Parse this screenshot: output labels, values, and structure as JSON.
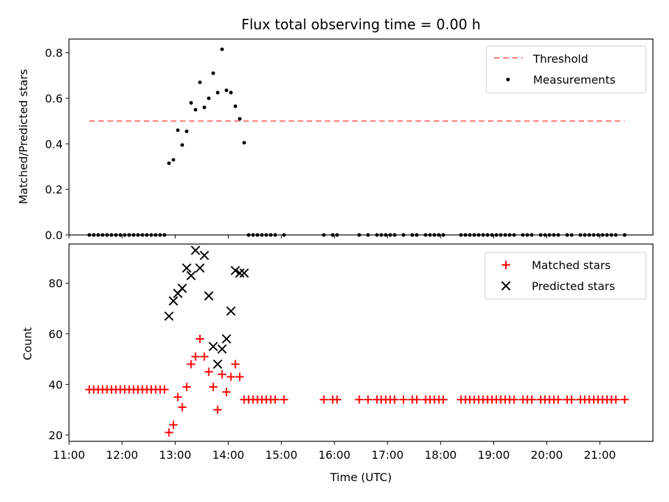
{
  "chart_data": [
    {
      "type": "scatter",
      "title": "Flux total observing time = 0.00 h",
      "xlabel": "",
      "ylabel": "Matched/Predicted stars",
      "xlim": [
        "11:00",
        "22:00"
      ],
      "ylim": [
        0,
        0.86
      ],
      "yticks": [
        0.0,
        0.2,
        0.4,
        0.6,
        0.8
      ],
      "ytick_labels": [
        "0.0",
        "0.2",
        "0.4",
        "0.6",
        "0.8"
      ],
      "legend_position": "top-right",
      "series": [
        {
          "name": "Threshold",
          "kind": "dashed-line",
          "color": "#ff7f7f",
          "x": [
            "11:23",
            "21:28"
          ],
          "y": [
            0.5,
            0.5
          ]
        },
        {
          "name": "Measurements",
          "kind": "points",
          "color": "#000000",
          "points": [
            [
              "11:23",
              0.0
            ],
            [
              "11:28",
              0.0
            ],
            [
              "11:33",
              0.0
            ],
            [
              "11:38",
              0.0
            ],
            [
              "11:43",
              0.0
            ],
            [
              "11:48",
              0.0
            ],
            [
              "11:53",
              0.0
            ],
            [
              "11:58",
              0.0
            ],
            [
              "12:03",
              0.0
            ],
            [
              "12:08",
              0.0
            ],
            [
              "12:13",
              0.0
            ],
            [
              "12:18",
              0.0
            ],
            [
              "12:23",
              0.0
            ],
            [
              "12:28",
              0.0
            ],
            [
              "12:33",
              0.0
            ],
            [
              "12:38",
              0.0
            ],
            [
              "12:43",
              0.0
            ],
            [
              "12:48",
              0.0
            ],
            [
              "12:53",
              0.315
            ],
            [
              "12:58",
              0.33
            ],
            [
              "13:03",
              0.46
            ],
            [
              "13:08",
              0.395
            ],
            [
              "13:13",
              0.455
            ],
            [
              "13:18",
              0.58
            ],
            [
              "13:23",
              0.55
            ],
            [
              "13:28",
              0.67
            ],
            [
              "13:33",
              0.56
            ],
            [
              "13:38",
              0.6
            ],
            [
              "13:43",
              0.71
            ],
            [
              "13:48",
              0.625
            ],
            [
              "13:53",
              0.815
            ],
            [
              "13:58",
              0.635
            ],
            [
              "14:03",
              0.625
            ],
            [
              "14:08",
              0.565
            ],
            [
              "14:13",
              0.51
            ],
            [
              "14:18",
              0.405
            ],
            [
              "14:23",
              0.0
            ],
            [
              "14:28",
              0.0
            ],
            [
              "14:33",
              0.0
            ],
            [
              "14:38",
              0.0
            ],
            [
              "14:43",
              0.0
            ],
            [
              "14:48",
              0.0
            ],
            [
              "14:53",
              0.0
            ],
            [
              "15:03",
              0.0
            ],
            [
              "15:48",
              0.0
            ],
            [
              "15:58",
              0.0
            ],
            [
              "16:03",
              0.0
            ],
            [
              "16:28",
              0.0
            ],
            [
              "16:38",
              0.0
            ],
            [
              "16:48",
              0.0
            ],
            [
              "16:53",
              0.0
            ],
            [
              "16:58",
              0.0
            ],
            [
              "17:03",
              0.0
            ],
            [
              "17:08",
              0.0
            ],
            [
              "17:18",
              0.0
            ],
            [
              "17:28",
              0.0
            ],
            [
              "17:33",
              0.0
            ],
            [
              "17:43",
              0.0
            ],
            [
              "17:48",
              0.0
            ],
            [
              "17:53",
              0.0
            ],
            [
              "17:58",
              0.0
            ],
            [
              "18:03",
              0.0
            ],
            [
              "18:23",
              0.0
            ],
            [
              "18:28",
              0.0
            ],
            [
              "18:33",
              0.0
            ],
            [
              "18:38",
              0.0
            ],
            [
              "18:43",
              0.0
            ],
            [
              "18:48",
              0.0
            ],
            [
              "18:53",
              0.0
            ],
            [
              "18:58",
              0.0
            ],
            [
              "19:03",
              0.0
            ],
            [
              "19:08",
              0.0
            ],
            [
              "19:13",
              0.0
            ],
            [
              "19:18",
              0.0
            ],
            [
              "19:23",
              0.0
            ],
            [
              "19:33",
              0.0
            ],
            [
              "19:38",
              0.0
            ],
            [
              "19:43",
              0.0
            ],
            [
              "19:53",
              0.0
            ],
            [
              "19:58",
              0.0
            ],
            [
              "20:03",
              0.0
            ],
            [
              "20:08",
              0.0
            ],
            [
              "20:13",
              0.0
            ],
            [
              "20:23",
              0.0
            ],
            [
              "20:28",
              0.0
            ],
            [
              "20:38",
              0.0
            ],
            [
              "20:43",
              0.0
            ],
            [
              "20:48",
              0.0
            ],
            [
              "20:53",
              0.0
            ],
            [
              "20:58",
              0.0
            ],
            [
              "21:03",
              0.0
            ],
            [
              "21:08",
              0.0
            ],
            [
              "21:13",
              0.0
            ],
            [
              "21:18",
              0.0
            ],
            [
              "21:28",
              0.0
            ]
          ]
        }
      ]
    },
    {
      "type": "scatter",
      "title": "",
      "xlabel": "Time (UTC)",
      "ylabel": "Count",
      "xlim": [
        "11:00",
        "22:00"
      ],
      "ylim": [
        17.5,
        95.5
      ],
      "xticks": [
        "11:00",
        "12:00",
        "13:00",
        "14:00",
        "15:00",
        "16:00",
        "17:00",
        "18:00",
        "19:00",
        "20:00",
        "21:00"
      ],
      "yticks": [
        20,
        40,
        60,
        80
      ],
      "ytick_labels": [
        "20",
        "40",
        "60",
        "80"
      ],
      "legend_position": "top-right",
      "series": [
        {
          "name": "Matched stars",
          "kind": "plus",
          "color": "#ff0000",
          "points": [
            [
              "11:23",
              38
            ],
            [
              "11:28",
              38
            ],
            [
              "11:33",
              38
            ],
            [
              "11:38",
              38
            ],
            [
              "11:43",
              38
            ],
            [
              "11:48",
              38
            ],
            [
              "11:53",
              38
            ],
            [
              "11:58",
              38
            ],
            [
              "12:03",
              38
            ],
            [
              "12:08",
              38
            ],
            [
              "12:13",
              38
            ],
            [
              "12:18",
              38
            ],
            [
              "12:23",
              38
            ],
            [
              "12:28",
              38
            ],
            [
              "12:33",
              38
            ],
            [
              "12:38",
              38
            ],
            [
              "12:43",
              38
            ],
            [
              "12:48",
              38
            ],
            [
              "12:53",
              21
            ],
            [
              "12:58",
              24
            ],
            [
              "13:03",
              35
            ],
            [
              "13:08",
              31
            ],
            [
              "13:13",
              39
            ],
            [
              "13:18",
              48
            ],
            [
              "13:23",
              51
            ],
            [
              "13:28",
              58
            ],
            [
              "13:33",
              51
            ],
            [
              "13:38",
              45
            ],
            [
              "13:43",
              39
            ],
            [
              "13:48",
              30
            ],
            [
              "13:53",
              44
            ],
            [
              "13:58",
              37
            ],
            [
              "14:03",
              43
            ],
            [
              "14:08",
              48
            ],
            [
              "14:13",
              43
            ],
            [
              "14:18",
              34
            ],
            [
              "14:23",
              34
            ],
            [
              "14:28",
              34
            ],
            [
              "14:33",
              34
            ],
            [
              "14:38",
              34
            ],
            [
              "14:43",
              34
            ],
            [
              "14:48",
              34
            ],
            [
              "14:53",
              34
            ],
            [
              "15:03",
              34
            ],
            [
              "15:48",
              34
            ],
            [
              "15:58",
              34
            ],
            [
              "16:03",
              34
            ],
            [
              "16:28",
              34
            ],
            [
              "16:38",
              34
            ],
            [
              "16:48",
              34
            ],
            [
              "16:53",
              34
            ],
            [
              "16:58",
              34
            ],
            [
              "17:03",
              34
            ],
            [
              "17:08",
              34
            ],
            [
              "17:18",
              34
            ],
            [
              "17:28",
              34
            ],
            [
              "17:33",
              34
            ],
            [
              "17:43",
              34
            ],
            [
              "17:48",
              34
            ],
            [
              "17:53",
              34
            ],
            [
              "17:58",
              34
            ],
            [
              "18:03",
              34
            ],
            [
              "18:23",
              34
            ],
            [
              "18:28",
              34
            ],
            [
              "18:33",
              34
            ],
            [
              "18:38",
              34
            ],
            [
              "18:43",
              34
            ],
            [
              "18:48",
              34
            ],
            [
              "18:53",
              34
            ],
            [
              "18:58",
              34
            ],
            [
              "19:03",
              34
            ],
            [
              "19:08",
              34
            ],
            [
              "19:13",
              34
            ],
            [
              "19:18",
              34
            ],
            [
              "19:23",
              34
            ],
            [
              "19:33",
              34
            ],
            [
              "19:38",
              34
            ],
            [
              "19:43",
              34
            ],
            [
              "19:53",
              34
            ],
            [
              "19:58",
              34
            ],
            [
              "20:03",
              34
            ],
            [
              "20:08",
              34
            ],
            [
              "20:13",
              34
            ],
            [
              "20:23",
              34
            ],
            [
              "20:28",
              34
            ],
            [
              "20:38",
              34
            ],
            [
              "20:43",
              34
            ],
            [
              "20:48",
              34
            ],
            [
              "20:53",
              34
            ],
            [
              "20:58",
              34
            ],
            [
              "21:03",
              34
            ],
            [
              "21:08",
              34
            ],
            [
              "21:13",
              34
            ],
            [
              "21:18",
              34
            ],
            [
              "21:28",
              34
            ]
          ]
        },
        {
          "name": "Predicted stars",
          "kind": "x",
          "color": "#000000",
          "points": [
            [
              "12:53",
              67
            ],
            [
              "12:58",
              73
            ],
            [
              "13:03",
              76
            ],
            [
              "13:08",
              78
            ],
            [
              "13:13",
              86
            ],
            [
              "13:18",
              83
            ],
            [
              "13:23",
              93
            ],
            [
              "13:28",
              86
            ],
            [
              "13:33",
              91
            ],
            [
              "13:38",
              75
            ],
            [
              "13:43",
              55
            ],
            [
              "13:48",
              48
            ],
            [
              "13:53",
              54
            ],
            [
              "13:58",
              58
            ],
            [
              "14:03",
              69
            ],
            [
              "14:08",
              85
            ],
            [
              "14:13",
              84
            ],
            [
              "14:18",
              84
            ]
          ]
        }
      ]
    }
  ]
}
